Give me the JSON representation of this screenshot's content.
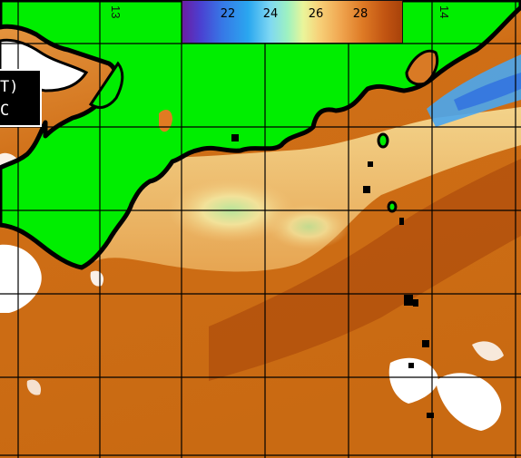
{
  "colorbar": {
    "ticks": [
      "22",
      "24",
      "26",
      "28"
    ]
  },
  "label": {
    "line1": "T)",
    "line2": "C"
  },
  "lon_labels": [
    "13",
    "14"
  ],
  "colors": {
    "land": "#00ee00",
    "coast": "#000000",
    "warm_sea": "#c7640f",
    "cool_sea": "#f6d68c",
    "cloud": "#ffffff",
    "grid": "#000000"
  }
}
